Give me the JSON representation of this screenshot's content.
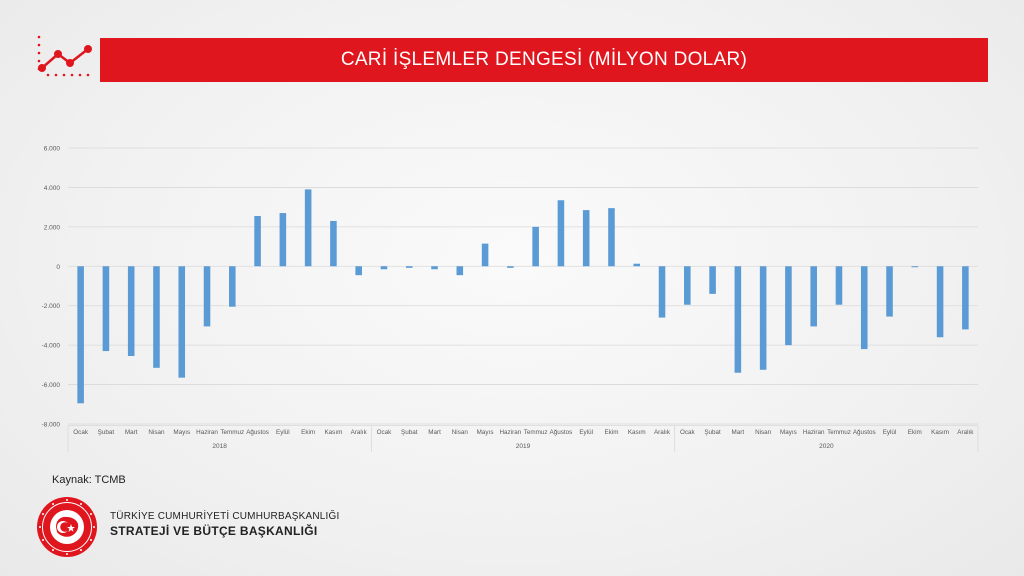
{
  "title": "CARİ İŞLEMLER DENGESİ (MİLYON DOLAR)",
  "source_label": "Kaynak: TCMB",
  "organization": {
    "line1": "TÜRKİYE CUMHURİYETİ CUMHURBAŞKANLIĞI",
    "line2": "STRATEJİ VE BÜTÇE BAŞKANLIĞI"
  },
  "colors": {
    "brand_red": "#e0161e",
    "bar": "#5b9bd5"
  },
  "icons": {
    "header": "line-chart-icon",
    "emblem": "presidency-emblem-icon"
  },
  "chart_data": {
    "type": "bar",
    "title": "",
    "xlabel": "",
    "ylabel": "",
    "ylim": [
      -8000,
      6000
    ],
    "yticks": [
      6000,
      4000,
      2000,
      0,
      -2000,
      -4000,
      -6000,
      -8000
    ],
    "ytick_labels": [
      "6.000",
      "4.000",
      "2.000",
      "0",
      "-2.000",
      "-4.000",
      "-6.000",
      "-8.000"
    ],
    "grid": true,
    "legend": "none",
    "groups": [
      {
        "year": "2018",
        "categories": [
          "Ocak",
          "Şubat",
          "Mart",
          "Nisan",
          "Mayıs",
          "Haziran",
          "Temmuz",
          "Ağustos",
          "Eylül",
          "Ekim",
          "Kasım",
          "Aralık"
        ],
        "values": [
          -6950,
          -4300,
          -4550,
          -5150,
          -5650,
          -3050,
          -2050,
          2550,
          2700,
          3900,
          2300,
          -450
        ]
      },
      {
        "year": "2019",
        "categories": [
          "Ocak",
          "Şubat",
          "Mart",
          "Nisan",
          "Mayıs",
          "Haziran",
          "Temmuz",
          "Ağustos",
          "Eylül",
          "Ekim",
          "Kasım",
          "Aralık"
        ],
        "values": [
          -150,
          -80,
          -150,
          -450,
          1150,
          -80,
          2000,
          3350,
          2850,
          2950,
          130,
          -2600
        ]
      },
      {
        "year": "2020",
        "categories": [
          "Ocak",
          "Şubat",
          "Mart",
          "Nisan",
          "Mayıs",
          "Haziran",
          "Temmuz",
          "Ağustos",
          "Eylül",
          "Ekim",
          "Kasım",
          "Aralık"
        ],
        "values": [
          -1950,
          -1400,
          -5400,
          -5250,
          -4000,
          -3050,
          -1950,
          -4200,
          -2550,
          -50,
          -3600,
          -3200
        ]
      }
    ]
  }
}
